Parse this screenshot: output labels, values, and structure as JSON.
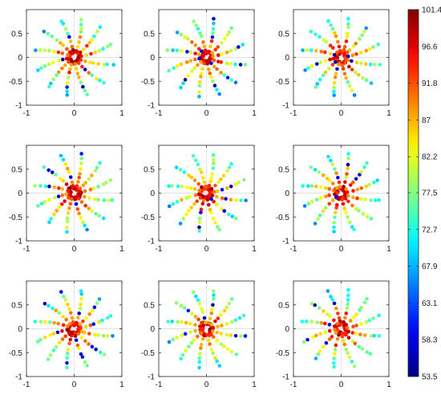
{
  "chart_data": {
    "type": "scatter",
    "layout": "3x3 grid of polar-spoke scatter panels sharing one colorbar",
    "xlim": [
      -1,
      1
    ],
    "ylim": [
      -1,
      1
    ],
    "x_ticks": [
      "-1",
      "0",
      "1"
    ],
    "y_ticks": [
      "0.5",
      "0",
      "-0.5",
      "-1"
    ],
    "y_tick_values": [
      0.5,
      0,
      -0.5,
      -1
    ],
    "grid": false,
    "center_lines": true,
    "colormap": "jet",
    "colorbar": {
      "min": 53.5,
      "max": 101.4,
      "ticks": [
        "101.4",
        "96.6",
        "91.8",
        "87",
        "82.2",
        "77.5",
        "72.7",
        "67.9",
        "63.1",
        "58.3",
        "53.5"
      ],
      "placement": "right"
    },
    "spokes": {
      "count": 12,
      "points_per_spoke": 8,
      "radius_min": 0.15,
      "radius_max": 0.82
    },
    "panels": [
      {
        "id": 1,
        "seed": 11
      },
      {
        "id": 2,
        "seed": 23
      },
      {
        "id": 3,
        "seed": 37
      },
      {
        "id": 4,
        "seed": 41
      },
      {
        "id": 5,
        "seed": 53
      },
      {
        "id": 6,
        "seed": 67
      },
      {
        "id": 7,
        "seed": 71
      },
      {
        "id": 8,
        "seed": 83
      },
      {
        "id": 9,
        "seed": 97
      }
    ]
  }
}
